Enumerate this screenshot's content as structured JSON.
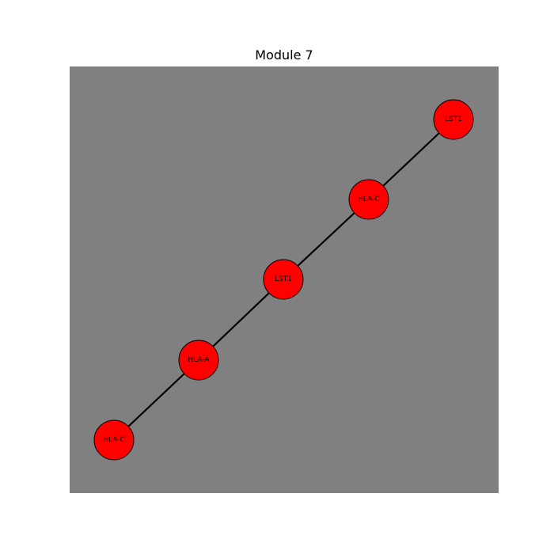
{
  "title": "Module 7",
  "colors": {
    "background": "#808080",
    "node_fill": "#ff0000",
    "node_stroke": "#000000",
    "edge": "#000000"
  },
  "graph": {
    "nodes": [
      {
        "id": "n1",
        "label": "LST1"
      },
      {
        "id": "n2",
        "label": "HLA-C"
      },
      {
        "id": "n3",
        "label": "LST1"
      },
      {
        "id": "n4",
        "label": "HLA-A"
      },
      {
        "id": "n5",
        "label": "HLA-C"
      }
    ],
    "edges": [
      {
        "source": "n1",
        "target": "n2"
      },
      {
        "source": "n2",
        "target": "n3"
      },
      {
        "source": "n3",
        "target": "n4"
      },
      {
        "source": "n4",
        "target": "n5"
      }
    ]
  }
}
